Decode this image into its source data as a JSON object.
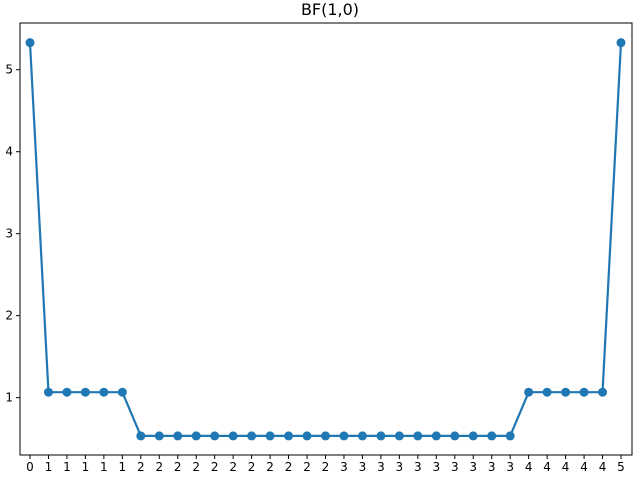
{
  "chart_data": {
    "type": "line",
    "title": "BF(1,0)",
    "xlabel": "",
    "ylabel": "",
    "categories": [
      "0",
      "1",
      "1",
      "1",
      "1",
      "1",
      "2",
      "2",
      "2",
      "2",
      "2",
      "2",
      "2",
      "2",
      "2",
      "2",
      "2",
      "3",
      "3",
      "3",
      "3",
      "3",
      "3",
      "3",
      "3",
      "3",
      "3",
      "4",
      "4",
      "4",
      "4",
      "4",
      "5"
    ],
    "series": [
      {
        "values": [
          5.33,
          1.066,
          1.066,
          1.066,
          1.066,
          1.066,
          0.533,
          0.533,
          0.533,
          0.533,
          0.533,
          0.533,
          0.533,
          0.533,
          0.533,
          0.533,
          0.533,
          0.533,
          0.533,
          0.533,
          0.533,
          0.533,
          0.533,
          0.533,
          0.533,
          0.533,
          0.533,
          1.066,
          1.066,
          1.066,
          1.066,
          1.066,
          5.33
        ]
      }
    ],
    "yticks": [
      1,
      2,
      3,
      4,
      5
    ],
    "ylim": [
      0.3,
      5.57
    ],
    "grid": false,
    "legend": "none",
    "color": "#1f77b4"
  }
}
